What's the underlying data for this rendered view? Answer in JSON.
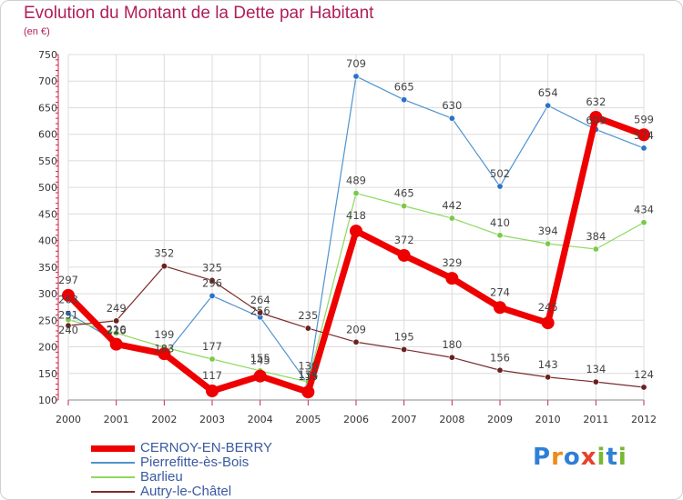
{
  "title": "Evolution du Montant de la Dette par Habitant",
  "unit_label": "(en €)",
  "logo": {
    "text": "Proxiti",
    "letters": [
      "P",
      "r",
      "o",
      "x",
      "i",
      "t",
      "i"
    ],
    "colors": [
      "#2f7fd6",
      "#f08a18",
      "#2f7fd6",
      "#e8402a",
      "#78b832",
      "#2f7fd6",
      "#78b832"
    ]
  },
  "chart_data": {
    "type": "line",
    "x": [
      "2000",
      "2001",
      "2002",
      "2003",
      "2004",
      "2005",
      "2006",
      "2007",
      "2008",
      "2009",
      "2010",
      "2011",
      "2012"
    ],
    "ylim": [
      100,
      750
    ],
    "yticks": [
      100,
      150,
      200,
      250,
      300,
      350,
      400,
      450,
      500,
      550,
      600,
      650,
      700,
      750
    ],
    "grid": true,
    "legend_position": "bottom-left",
    "series": [
      {
        "name": "CERNOY-EN-BERRY",
        "color": "#ee0000",
        "marker": "#ee0000",
        "width": 7,
        "marker_r": 7,
        "values": [
          297,
          205,
          187,
          117,
          145,
          115,
          418,
          372,
          329,
          274,
          245,
          632,
          599
        ],
        "labels": [
          "297",
          "",
          "",
          "117",
          "145",
          "115",
          "418",
          "372",
          "329",
          "274",
          "245",
          "632",
          "599"
        ]
      },
      {
        "name": "Pierrefitte-ès-Bois",
        "color": "#4f93cf",
        "marker": "#2d72c4",
        "width": 1.2,
        "marker_r": 3.2,
        "values": [
          263,
          210,
          183,
          296,
          256,
          130,
          709,
          665,
          630,
          502,
          654,
          609,
          574
        ],
        "labels": [
          "",
          "",
          "",
          "296",
          "",
          "",
          "709",
          "665",
          "630",
          "502",
          "654",
          "",
          "574"
        ]
      },
      {
        "name": "Barlieu",
        "color": "#8ed860",
        "marker": "#7cc94a",
        "width": 1.2,
        "marker_r": 3.2,
        "values": [
          251,
          226,
          199,
          177,
          155,
          134,
          489,
          465,
          442,
          410,
          394,
          384,
          434
        ],
        "labels": [
          "",
          "",
          "199",
          "177",
          "155",
          "",
          "489",
          "465",
          "442",
          "410",
          "394",
          "384",
          "434"
        ]
      },
      {
        "name": "Autry-le-Châtel",
        "color": "#7a2c2c",
        "marker": "#6a2020",
        "width": 1.2,
        "marker_r": 3.2,
        "values": [
          240,
          249,
          352,
          325,
          264,
          235,
          209,
          195,
          180,
          156,
          143,
          134,
          124
        ],
        "labels": [
          "",
          "249",
          "352",
          "325",
          "264",
          "235",
          "209",
          "195",
          "180",
          "156",
          "143",
          "134",
          "124"
        ]
      }
    ],
    "clustered_labels": [
      "263",
      "251",
      "240",
      "210",
      "226",
      "183",
      "256",
      "130",
      "134",
      "609"
    ]
  }
}
